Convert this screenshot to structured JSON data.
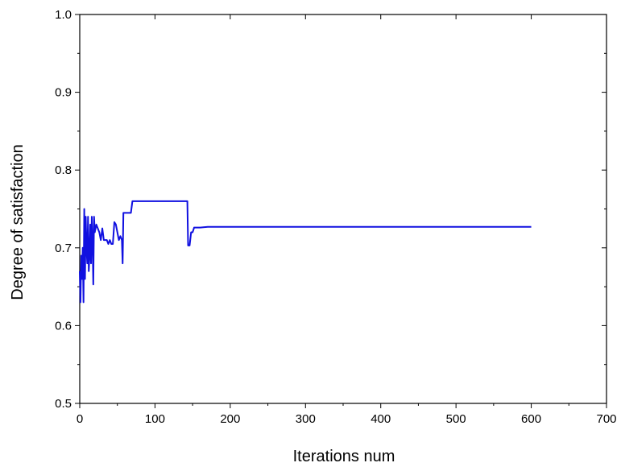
{
  "chart_data": {
    "type": "line",
    "title": "",
    "xlabel": "Iterations num",
    "ylabel": "Degree of satisfaction",
    "xlim": [
      0,
      700
    ],
    "ylim": [
      0.5,
      1.0
    ],
    "x_ticks": [
      "0",
      "100",
      "200",
      "300",
      "400",
      "500",
      "600",
      "700"
    ],
    "y_ticks": [
      "0.5",
      "0.6",
      "0.7",
      "0.8",
      "0.9",
      "1.0"
    ],
    "grid": false,
    "legend": "none",
    "series": [
      {
        "color": "#1010e0",
        "x": [
          0,
          1,
          2,
          3,
          4,
          5,
          6,
          7,
          8,
          9,
          10,
          11,
          12,
          13,
          14,
          15,
          16,
          17,
          18,
          19,
          20,
          22,
          24,
          26,
          28,
          30,
          32,
          34,
          36,
          38,
          40,
          42,
          44,
          46,
          48,
          50,
          52,
          54,
          56,
          57,
          58,
          60,
          62,
          65,
          68,
          70,
          100,
          143,
          144,
          146,
          148,
          150,
          152,
          155,
          160,
          170,
          200,
          300,
          400,
          500,
          600
        ],
        "y": [
          0.67,
          0.63,
          0.69,
          0.66,
          0.7,
          0.63,
          0.75,
          0.66,
          0.74,
          0.7,
          0.68,
          0.74,
          0.67,
          0.69,
          0.73,
          0.68,
          0.74,
          0.71,
          0.653,
          0.74,
          0.72,
          0.73,
          0.725,
          0.72,
          0.71,
          0.725,
          0.71,
          0.71,
          0.71,
          0.705,
          0.71,
          0.705,
          0.705,
          0.733,
          0.73,
          0.72,
          0.71,
          0.715,
          0.71,
          0.68,
          0.745,
          0.745,
          0.745,
          0.745,
          0.745,
          0.76,
          0.76,
          0.76,
          0.703,
          0.703,
          0.72,
          0.72,
          0.726,
          0.726,
          0.726,
          0.727,
          0.727,
          0.727,
          0.727,
          0.727,
          0.727
        ]
      }
    ]
  }
}
